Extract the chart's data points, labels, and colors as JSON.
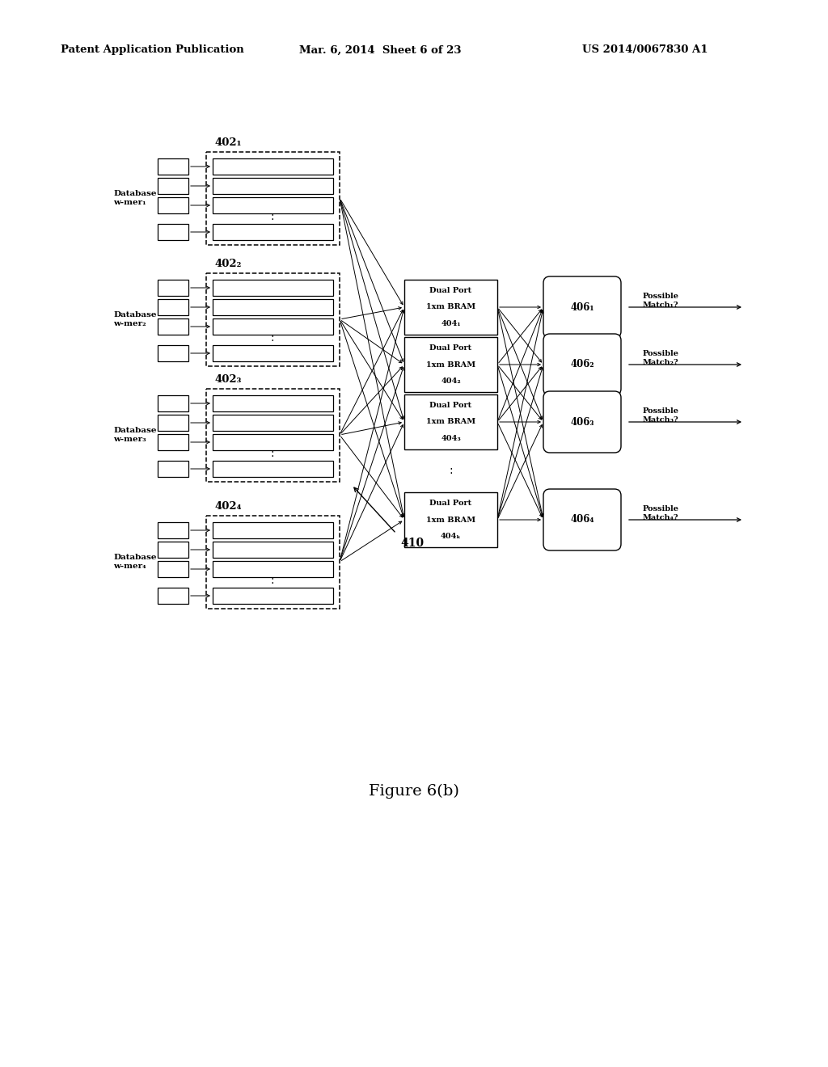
{
  "bg_color": "#ffffff",
  "header_text": "Patent Application Publication",
  "header_date": "Mar. 6, 2014  Sheet 6 of 23",
  "header_patent": "US 2014/0067830 A1",
  "figure_label": "Figure 6(b)",
  "groups": [
    {
      "label": "402₁",
      "db_label": "Database\nw-mer₁"
    },
    {
      "label": "402₂",
      "db_label": "Database\nw-mer₂"
    },
    {
      "label": "402₃",
      "db_label": "Database\nw-mer₃"
    },
    {
      "label": "402₄",
      "db_label": "Database\nw-mer₄"
    }
  ],
  "bram_labels": [
    "Dual Port\n1xm BRAM\n404₁",
    "Dual Port\n1xm BRAM\n404₂",
    "Dual Port\n1xm BRAM\n404₃",
    "Dual Port\n1xm BRAM\n404k"
  ],
  "ellipse_labels": [
    "406₁",
    "406₂",
    "406₃",
    "406₄"
  ],
  "pm_labels": [
    "Possible\nMatch₁?",
    "Possible\nMatch₂?",
    "Possible\nMatch₃?",
    "Possible\nMatch₄?"
  ],
  "annotation_410": "410"
}
